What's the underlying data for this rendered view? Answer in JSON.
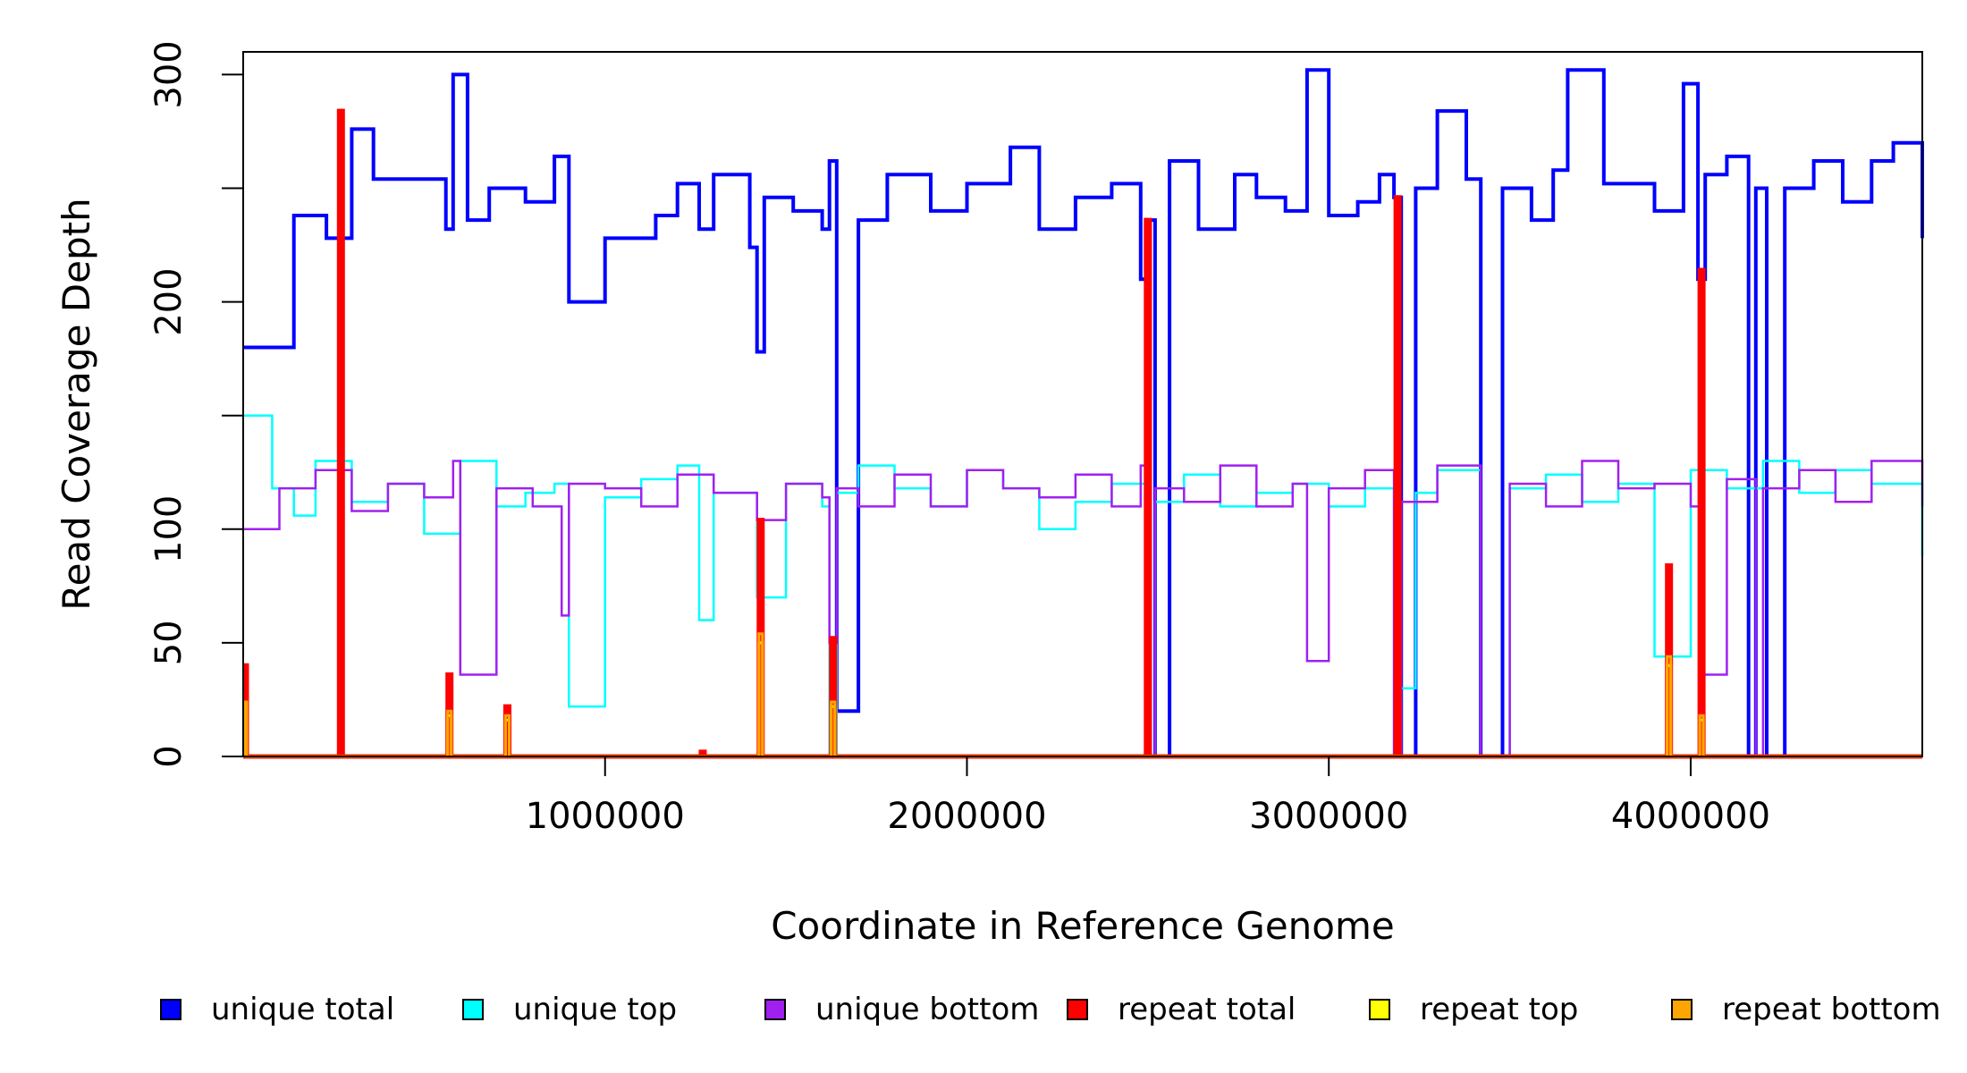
{
  "chart_data": {
    "type": "line",
    "xlabel": "Coordinate in Reference Genome",
    "ylabel": "Read Coverage Depth",
    "xlim": [
      0,
      4640000
    ],
    "ylim": [
      0,
      310
    ],
    "x_ticks": [
      1000000,
      2000000,
      3000000,
      4000000
    ],
    "x_tick_labels": [
      "1000000",
      "2000000",
      "3000000",
      "4000000"
    ],
    "y_ticks": [
      0,
      50,
      100,
      150,
      200,
      250,
      300
    ],
    "y_tick_labels": [
      "0",
      "50",
      "100",
      "",
      "200",
      "",
      "300"
    ],
    "grid": false,
    "legend_position": "bottom",
    "series": [
      {
        "name": "unique total",
        "color": "#0000ff",
        "x": [
          0,
          140000,
          230000,
          300000,
          360000,
          560000,
          580000,
          620000,
          680000,
          780000,
          860000,
          900000,
          1000000,
          1140000,
          1200000,
          1260000,
          1300000,
          1400000,
          1420000,
          1440000,
          1520000,
          1600000,
          1620000,
          1640000,
          1700000,
          1780000,
          1900000,
          2000000,
          2120000,
          2200000,
          2300000,
          2400000,
          2480000,
          2500000,
          2520000,
          2560000,
          2640000,
          2740000,
          2800000,
          2880000,
          2940000,
          3000000,
          3080000,
          3140000,
          3180000,
          3200000,
          3240000,
          3300000,
          3380000,
          3420000,
          3480000,
          3560000,
          3620000,
          3660000,
          3760000,
          3900000,
          3980000,
          4020000,
          4040000,
          4100000,
          4160000,
          4180000,
          4210000,
          4260000,
          4340000,
          4420000,
          4500000,
          4560000,
          4640000
        ],
        "values": [
          180,
          238,
          228,
          276,
          254,
          232,
          300,
          236,
          250,
          244,
          264,
          200,
          228,
          238,
          252,
          232,
          256,
          224,
          178,
          246,
          240,
          232,
          262,
          20,
          236,
          256,
          240,
          252,
          268,
          232,
          246,
          252,
          210,
          236,
          0,
          262,
          232,
          256,
          246,
          240,
          302,
          238,
          244,
          256,
          246,
          0,
          250,
          284,
          254,
          0,
          250,
          236,
          258,
          302,
          252,
          240,
          296,
          210,
          256,
          264,
          0,
          250,
          0,
          250,
          262,
          244,
          262,
          270,
          228
        ]
      },
      {
        "name": "unique top",
        "color": "#00ffff",
        "x": [
          0,
          80000,
          140000,
          200000,
          300000,
          400000,
          500000,
          600000,
          700000,
          780000,
          860000,
          900000,
          1000000,
          1100000,
          1200000,
          1260000,
          1300000,
          1420000,
          1500000,
          1600000,
          1620000,
          1640000,
          1700000,
          1800000,
          1900000,
          2000000,
          2100000,
          2200000,
          2300000,
          2400000,
          2480000,
          2500000,
          2520000,
          2600000,
          2700000,
          2800000,
          2900000,
          3000000,
          3100000,
          3180000,
          3200000,
          3240000,
          3300000,
          3420000,
          3500000,
          3600000,
          3700000,
          3800000,
          3900000,
          4000000,
          4100000,
          4200000,
          4300000,
          4400000,
          4500000,
          4640000
        ],
        "values": [
          150,
          118,
          106,
          130,
          112,
          120,
          98,
          130,
          110,
          116,
          120,
          22,
          114,
          122,
          128,
          60,
          116,
          70,
          120,
          110,
          0,
          116,
          128,
          118,
          110,
          126,
          118,
          100,
          112,
          120,
          120,
          0,
          112,
          124,
          110,
          116,
          120,
          110,
          118,
          0,
          30,
          116,
          126,
          0,
          118,
          124,
          112,
          120,
          44,
          126,
          118,
          130,
          116,
          126,
          120,
          88
        ]
      },
      {
        "name": "unique bottom",
        "color": "#a020f0",
        "x": [
          0,
          100000,
          200000,
          300000,
          400000,
          500000,
          580000,
          600000,
          700000,
          800000,
          880000,
          900000,
          1000000,
          1100000,
          1200000,
          1300000,
          1420000,
          1500000,
          1600000,
          1620000,
          1640000,
          1700000,
          1800000,
          1900000,
          2000000,
          2100000,
          2200000,
          2300000,
          2400000,
          2480000,
          2500000,
          2520000,
          2600000,
          2700000,
          2800000,
          2900000,
          2940000,
          3000000,
          3100000,
          3180000,
          3200000,
          3300000,
          3420000,
          3500000,
          3600000,
          3700000,
          3800000,
          3900000,
          4000000,
          4030000,
          4100000,
          4180000,
          4200000,
          4300000,
          4400000,
          4500000,
          4640000
        ],
        "values": [
          100,
          118,
          126,
          108,
          120,
          114,
          130,
          36,
          118,
          110,
          62,
          120,
          118,
          110,
          124,
          116,
          104,
          120,
          114,
          50,
          118,
          110,
          124,
          110,
          126,
          118,
          114,
          124,
          110,
          128,
          0,
          118,
          112,
          128,
          110,
          120,
          42,
          118,
          126,
          0,
          112,
          128,
          0,
          120,
          110,
          130,
          118,
          120,
          110,
          36,
          122,
          0,
          118,
          126,
          112,
          130,
          110
        ]
      },
      {
        "name": "repeat total",
        "color": "#ff0000",
        "x": [
          0,
          5000,
          10000,
          260000,
          265000,
          275000,
          560000,
          565000,
          575000,
          720000,
          725000,
          735000,
          1260000,
          1265000,
          1275000,
          1420000,
          1425000,
          1435000,
          1620000,
          1625000,
          1635000,
          2490000,
          2495000,
          2505000,
          3180000,
          3185000,
          3195000,
          3930000,
          3935000,
          3945000,
          4020000,
          4025000,
          4035000,
          4640000
        ],
        "values": [
          0,
          40,
          0,
          0,
          284,
          0,
          0,
          36,
          0,
          0,
          22,
          0,
          0,
          2,
          0,
          0,
          104,
          0,
          0,
          52,
          0,
          0,
          236,
          0,
          0,
          246,
          0,
          0,
          84,
          0,
          0,
          214,
          0,
          0
        ]
      },
      {
        "name": "repeat top",
        "color": "#ffff00",
        "x": [
          0,
          5000,
          10000,
          560000,
          565000,
          575000,
          720000,
          725000,
          735000,
          1420000,
          1425000,
          1435000,
          1620000,
          1625000,
          1635000,
          3930000,
          3935000,
          3945000,
          4020000,
          4025000,
          4035000,
          4640000
        ],
        "values": [
          0,
          22,
          0,
          0,
          18,
          0,
          0,
          16,
          0,
          0,
          50,
          0,
          0,
          22,
          0,
          0,
          40,
          0,
          0,
          16,
          0,
          0
        ]
      },
      {
        "name": "repeat bottom",
        "color": "#ffa500",
        "x": [
          0,
          5000,
          10000,
          560000,
          565000,
          575000,
          720000,
          725000,
          735000,
          1420000,
          1425000,
          1435000,
          1620000,
          1625000,
          1635000,
          3930000,
          3935000,
          3945000,
          4020000,
          4025000,
          4035000,
          4640000
        ],
        "values": [
          0,
          24,
          0,
          0,
          20,
          0,
          0,
          18,
          0,
          0,
          54,
          0,
          0,
          24,
          0,
          0,
          44,
          0,
          0,
          18,
          0,
          0
        ]
      }
    ]
  }
}
